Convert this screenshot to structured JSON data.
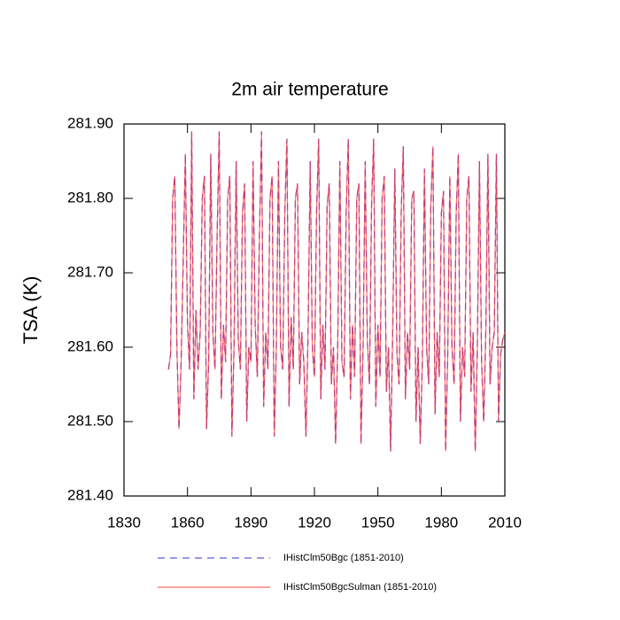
{
  "chart_data": {
    "type": "line",
    "title": "2m air temperature",
    "y_label": "TSA  (K)",
    "x": [
      1851,
      1852,
      1853,
      1854,
      1855,
      1856,
      1857,
      1858,
      1859,
      1860,
      1861,
      1862,
      1863,
      1864,
      1865,
      1866,
      1867,
      1868,
      1869,
      1870,
      1871,
      1872,
      1873,
      1874,
      1875,
      1876,
      1877,
      1878,
      1879,
      1880,
      1881,
      1882,
      1883,
      1884,
      1885,
      1886,
      1887,
      1888,
      1889,
      1890,
      1891,
      1892,
      1893,
      1894,
      1895,
      1896,
      1897,
      1898,
      1899,
      1900,
      1901,
      1902,
      1903,
      1904,
      1905,
      1906,
      1907,
      1908,
      1909,
      1910,
      1911,
      1912,
      1913,
      1914,
      1915,
      1916,
      1917,
      1918,
      1919,
      1920,
      1921,
      1922,
      1923,
      1924,
      1925,
      1926,
      1927,
      1928,
      1929,
      1930,
      1931,
      1932,
      1933,
      1934,
      1935,
      1936,
      1937,
      1938,
      1939,
      1940,
      1941,
      1942,
      1943,
      1944,
      1945,
      1946,
      1947,
      1948,
      1949,
      1950,
      1951,
      1952,
      1953,
      1954,
      1955,
      1956,
      1957,
      1958,
      1959,
      1960,
      1961,
      1962,
      1963,
      1964,
      1965,
      1966,
      1967,
      1968,
      1969,
      1970,
      1971,
      1972,
      1973,
      1974,
      1975,
      1976,
      1977,
      1978,
      1979,
      1980,
      1981,
      1982,
      1983,
      1984,
      1985,
      1986,
      1987,
      1988,
      1989,
      1990,
      1991,
      1992,
      1993,
      1994,
      1995,
      1996,
      1997,
      1998,
      1999,
      2000,
      2001,
      2002,
      2003,
      2004,
      2005,
      2006,
      2007,
      2008,
      2009,
      2010
    ],
    "series": [
      {
        "name": "IHistClm50Bgc (1851-2010)",
        "color": "#3030e0",
        "dashed": true,
        "values": [
          281.57,
          281.59,
          281.8,
          281.83,
          281.6,
          281.49,
          281.58,
          281.72,
          281.86,
          281.63,
          281.57,
          281.89,
          281.53,
          281.65,
          281.57,
          281.62,
          281.8,
          281.83,
          281.49,
          281.58,
          281.86,
          281.62,
          281.57,
          281.75,
          281.89,
          281.53,
          281.63,
          281.58,
          281.8,
          281.83,
          281.48,
          281.6,
          281.85,
          281.61,
          281.57,
          281.78,
          281.82,
          281.5,
          281.6,
          281.58,
          281.85,
          281.63,
          281.56,
          281.75,
          281.89,
          281.52,
          281.62,
          281.57,
          281.8,
          281.83,
          281.48,
          281.6,
          281.85,
          281.6,
          281.57,
          281.78,
          281.88,
          281.52,
          281.64,
          281.57,
          281.8,
          281.82,
          281.55,
          281.62,
          281.58,
          281.48,
          281.62,
          281.85,
          281.6,
          281.56,
          281.78,
          281.88,
          281.53,
          281.63,
          281.57,
          281.79,
          281.82,
          281.55,
          281.6,
          281.47,
          281.6,
          281.85,
          281.58,
          281.56,
          281.78,
          281.88,
          281.53,
          281.63,
          281.56,
          281.8,
          281.82,
          281.47,
          281.6,
          281.85,
          281.61,
          281.55,
          281.79,
          281.88,
          281.52,
          281.63,
          281.56,
          281.8,
          281.83,
          281.54,
          281.6,
          281.46,
          281.62,
          281.84,
          281.59,
          281.55,
          281.78,
          281.87,
          281.53,
          281.62,
          281.57,
          281.8,
          281.81,
          281.5,
          281.6,
          281.47,
          281.58,
          281.84,
          281.6,
          281.55,
          281.79,
          281.87,
          281.51,
          281.62,
          281.56,
          281.78,
          281.81,
          281.46,
          281.59,
          281.83,
          281.6,
          281.55,
          281.78,
          281.86,
          281.5,
          281.6,
          281.56,
          281.8,
          281.83,
          281.54,
          281.62,
          281.46,
          281.6,
          281.85,
          281.58,
          281.5,
          281.62,
          281.86,
          281.55,
          281.6,
          281.62,
          281.86,
          281.5,
          281.59,
          281.61,
          281.62
        ]
      },
      {
        "name": "IHistClm50BgcSulman (1851-2010)",
        "color": "#ff4040",
        "dashed": false,
        "values": [
          281.57,
          281.59,
          281.8,
          281.83,
          281.6,
          281.49,
          281.58,
          281.72,
          281.86,
          281.63,
          281.57,
          281.89,
          281.53,
          281.65,
          281.57,
          281.62,
          281.8,
          281.83,
          281.49,
          281.58,
          281.86,
          281.62,
          281.57,
          281.75,
          281.89,
          281.53,
          281.63,
          281.58,
          281.8,
          281.83,
          281.48,
          281.6,
          281.85,
          281.61,
          281.57,
          281.78,
          281.82,
          281.5,
          281.6,
          281.58,
          281.85,
          281.63,
          281.56,
          281.75,
          281.89,
          281.52,
          281.62,
          281.57,
          281.8,
          281.83,
          281.48,
          281.6,
          281.85,
          281.6,
          281.57,
          281.78,
          281.88,
          281.52,
          281.64,
          281.57,
          281.8,
          281.82,
          281.55,
          281.62,
          281.58,
          281.48,
          281.62,
          281.85,
          281.6,
          281.56,
          281.78,
          281.88,
          281.53,
          281.63,
          281.57,
          281.79,
          281.82,
          281.55,
          281.6,
          281.47,
          281.6,
          281.85,
          281.58,
          281.56,
          281.78,
          281.88,
          281.53,
          281.63,
          281.56,
          281.8,
          281.82,
          281.47,
          281.6,
          281.85,
          281.61,
          281.55,
          281.79,
          281.88,
          281.52,
          281.63,
          281.56,
          281.8,
          281.83,
          281.54,
          281.6,
          281.46,
          281.62,
          281.84,
          281.59,
          281.55,
          281.78,
          281.87,
          281.53,
          281.62,
          281.57,
          281.8,
          281.81,
          281.5,
          281.6,
          281.47,
          281.58,
          281.84,
          281.6,
          281.55,
          281.79,
          281.87,
          281.51,
          281.62,
          281.56,
          281.78,
          281.81,
          281.46,
          281.59,
          281.83,
          281.6,
          281.55,
          281.78,
          281.86,
          281.5,
          281.6,
          281.56,
          281.8,
          281.83,
          281.54,
          281.62,
          281.46,
          281.6,
          281.85,
          281.58,
          281.5,
          281.62,
          281.86,
          281.55,
          281.6,
          281.62,
          281.86,
          281.5,
          281.59,
          281.61,
          281.62
        ]
      }
    ],
    "xlim": [
      1830,
      2010
    ],
    "xticks": [
      1830,
      1860,
      1890,
      1920,
      1950,
      1980,
      2010
    ],
    "ylim": [
      281.4,
      281.9
    ],
    "yticks": [
      {
        "value": 281.4,
        "label": "281.40"
      },
      {
        "value": 281.5,
        "label": "281.50"
      },
      {
        "value": 281.6,
        "label": "281.60"
      },
      {
        "value": 281.7,
        "label": "281.70"
      },
      {
        "value": 281.8,
        "label": "281.80"
      },
      {
        "value": 281.9,
        "label": "281.90"
      }
    ],
    "grid": false
  }
}
